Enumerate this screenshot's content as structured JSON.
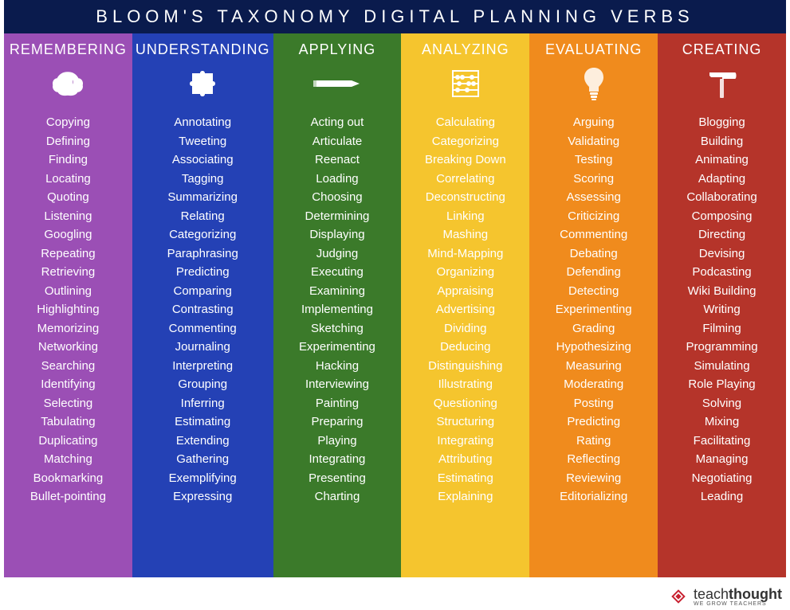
{
  "title": "BLOOM'S TAXONOMY DIGITAL PLANNING VERBS",
  "header_bg": "#0a1b4d",
  "columns": [
    {
      "title": "REMEMBERING",
      "color": "#9b4fb5",
      "icon": "brain",
      "verbs": [
        "Copying",
        "Defining",
        "Finding",
        "Locating",
        "Quoting",
        "Listening",
        "Googling",
        "Repeating",
        "Retrieving",
        "Outlining",
        "Highlighting",
        "Memorizing",
        "Networking",
        "Searching",
        "Identifying",
        "Selecting",
        "Tabulating",
        "Duplicating",
        "Matching",
        "Bookmarking",
        "Bullet-pointing"
      ]
    },
    {
      "title": "UNDERSTANDING",
      "color": "#2441b5",
      "icon": "puzzle",
      "verbs": [
        "Annotating",
        "Tweeting",
        "Associating",
        "Tagging",
        "Summarizing",
        "Relating",
        "Categorizing",
        "Paraphrasing",
        "Predicting",
        "Comparing",
        "Contrasting",
        "Commenting",
        "Journaling",
        "Interpreting",
        "Grouping",
        "Inferring",
        "Estimating",
        "Extending",
        "Gathering",
        "Exemplifying",
        "Expressing"
      ]
    },
    {
      "title": "APPLYING",
      "color": "#3b7a2a",
      "icon": "pencil",
      "verbs": [
        "Acting out",
        "Articulate",
        "Reenact",
        "Loading",
        "Choosing",
        "Determining",
        "Displaying",
        "Judging",
        "Executing",
        "Examining",
        "Implementing",
        "Sketching",
        "Experimenting",
        "Hacking",
        "Interviewing",
        "Painting",
        "Preparing",
        "Playing",
        "Integrating",
        "Presenting",
        "Charting"
      ]
    },
    {
      "title": "ANALYZING",
      "color": "#f5c52e",
      "icon": "abacus",
      "verbs": [
        "Calculating",
        "Categorizing",
        "Breaking Down",
        "Correlating",
        "Deconstructing",
        "Linking",
        "Mashing",
        "Mind-Mapping",
        "Organizing",
        "Appraising",
        "Advertising",
        "Dividing",
        "Deducing",
        "Distinguishing",
        "Illustrating",
        "Questioning",
        "Structuring",
        "Integrating",
        "Attributing",
        "Estimating",
        "Explaining"
      ]
    },
    {
      "title": "EVALUATING",
      "color": "#f08b1d",
      "icon": "lightbulb",
      "verbs": [
        "Arguing",
        "Validating",
        "Testing",
        "Scoring",
        "Assessing",
        "Criticizing",
        "Commenting",
        "Debating",
        "Defending",
        "Detecting",
        "Experimenting",
        "Grading",
        "Hypothesizing",
        "Measuring",
        "Moderating",
        "Posting",
        "Predicting",
        "Rating",
        "Reflecting",
        "Reviewing",
        "Editorializing"
      ]
    },
    {
      "title": "CREATING",
      "color": "#b5342a",
      "icon": "hammer",
      "verbs": [
        "Blogging",
        "Building",
        "Animating",
        "Adapting",
        "Collaborating",
        "Composing",
        "Directing",
        "Devising",
        "Podcasting",
        "Wiki Building",
        "Writing",
        "Filming",
        "Programming",
        "Simulating",
        "Role Playing",
        "Solving",
        "Mixing",
        "Facilitating",
        "Managing",
        "Negotiating",
        "Leading"
      ]
    }
  ],
  "footer": {
    "brand_light": "teach",
    "brand_bold": "thought",
    "tagline": "WE GROW TEACHERS",
    "logo_color": "#c8202f"
  }
}
